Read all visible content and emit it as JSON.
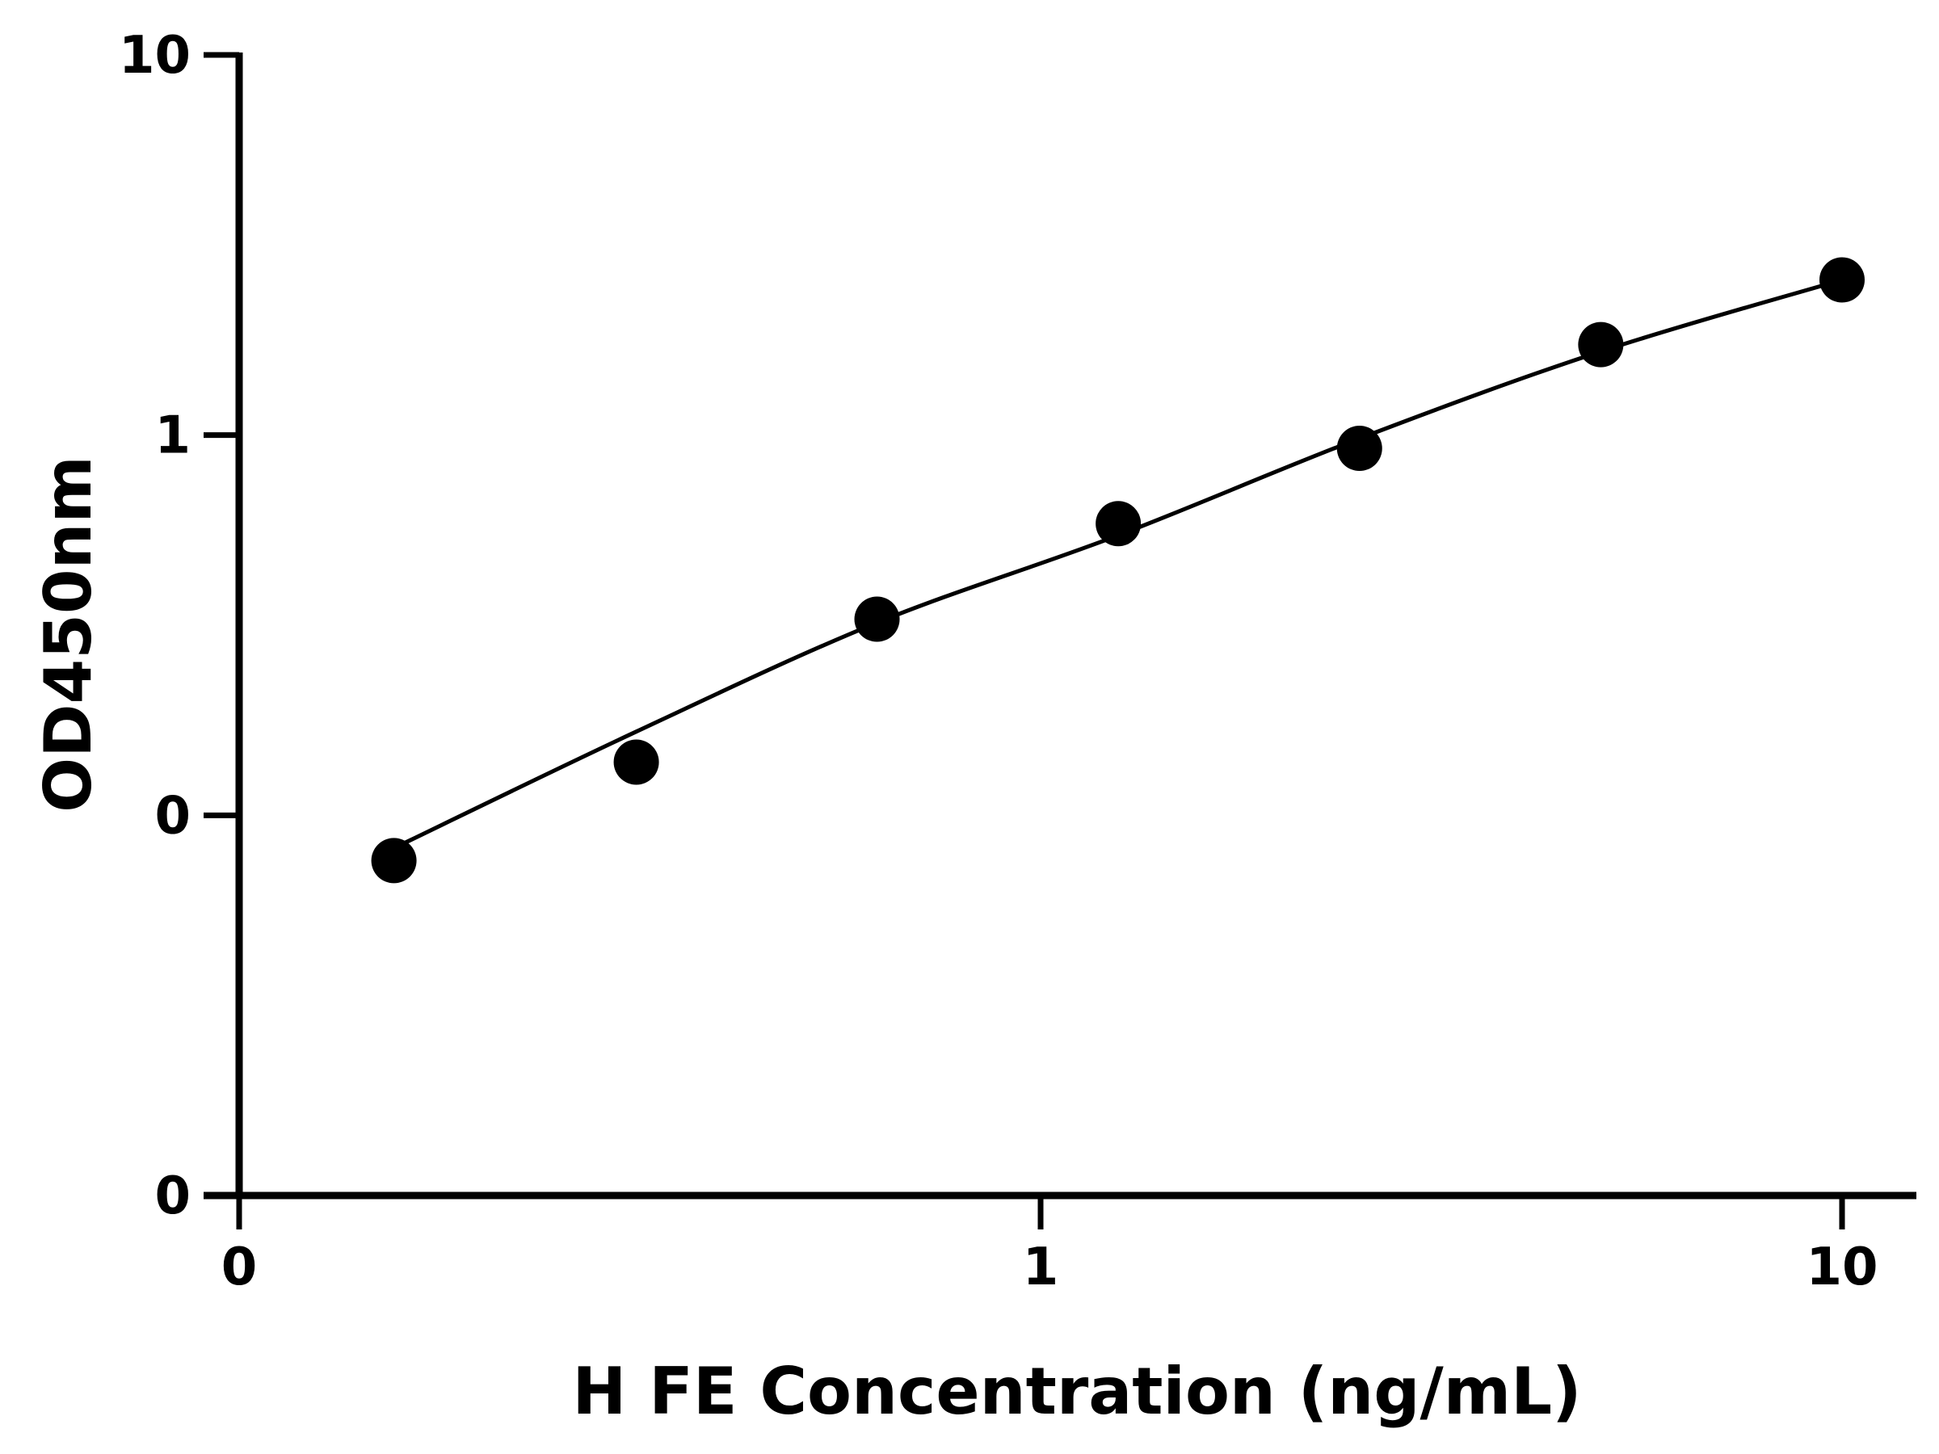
{
  "chart_data": {
    "type": "scatter",
    "title": "",
    "xlabel": "H FE Concentration (ng/mL)",
    "ylabel": "OD450nm",
    "x_scale": "log",
    "y_scale": "log",
    "x_ticks": [
      {
        "value": 0.1,
        "label": "0"
      },
      {
        "value": 1,
        "label": "1"
      },
      {
        "value": 10,
        "label": "10"
      }
    ],
    "y_ticks": [
      {
        "value": 0.01,
        "label": "0"
      },
      {
        "value": 0.1,
        "label": "0"
      },
      {
        "value": 1,
        "label": "1"
      },
      {
        "value": 10,
        "label": "10"
      }
    ],
    "xlim": [
      0.1,
      12
    ],
    "ylim": [
      0.01,
      10
    ],
    "grid": false,
    "legend": "none",
    "series": [
      {
        "x": [
          0.156,
          0.313,
          0.625,
          1.25,
          2.5,
          5,
          10
        ],
        "y": [
          0.076,
          0.138,
          0.328,
          0.585,
          0.923,
          1.73,
          2.56
        ]
      }
    ],
    "fit_curve": {
      "x": [
        0.156,
        0.313,
        0.625,
        1.25,
        2.5,
        5,
        10
      ],
      "y": [
        0.082,
        0.166,
        0.321,
        0.545,
        0.98,
        1.66,
        2.56
      ]
    },
    "colors": {
      "line": "#000000",
      "marker": "#000000",
      "axis": "#000000"
    }
  }
}
